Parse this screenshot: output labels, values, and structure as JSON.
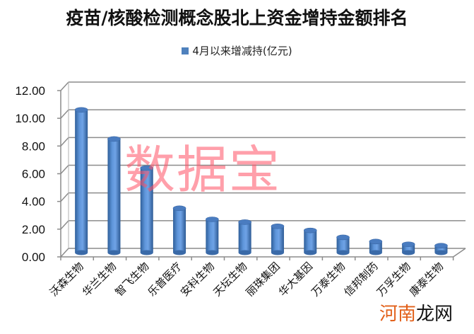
{
  "title": "疫苗/核酸检测概念股北上资金增持金额排名",
  "legend": {
    "label": "4月以来增减持(亿元)",
    "color": "#4F81BD"
  },
  "watermarks": {
    "center": "数据宝",
    "corner_part1": "河南",
    "corner_part2": "龙网"
  },
  "chart_data": {
    "type": "bar",
    "style": "3d-cylinder",
    "title": "疫苗/核酸检测概念股北上资金增持金额排名",
    "xlabel": "",
    "ylabel": "",
    "ylim": [
      0,
      12
    ],
    "yticks": [
      "0.00",
      "2.00",
      "4.00",
      "6.00",
      "8.00",
      "10.00",
      "12.00"
    ],
    "grid": true,
    "legend_position": "top",
    "categories": [
      "沃森生物",
      "华兰生物",
      "智飞生物",
      "乐普医疗",
      "安科生物",
      "天坛生物",
      "丽珠集团",
      "华大基因",
      "万泰生物",
      "信邦制药",
      "万孚生物",
      "康泰生物"
    ],
    "series": [
      {
        "name": "4月以来增减持(亿元)",
        "color": "#4F81BD",
        "values": [
          10.3,
          8.2,
          6.1,
          3.2,
          2.4,
          2.2,
          1.9,
          1.6,
          1.1,
          0.8,
          0.6,
          0.5
        ]
      }
    ]
  }
}
